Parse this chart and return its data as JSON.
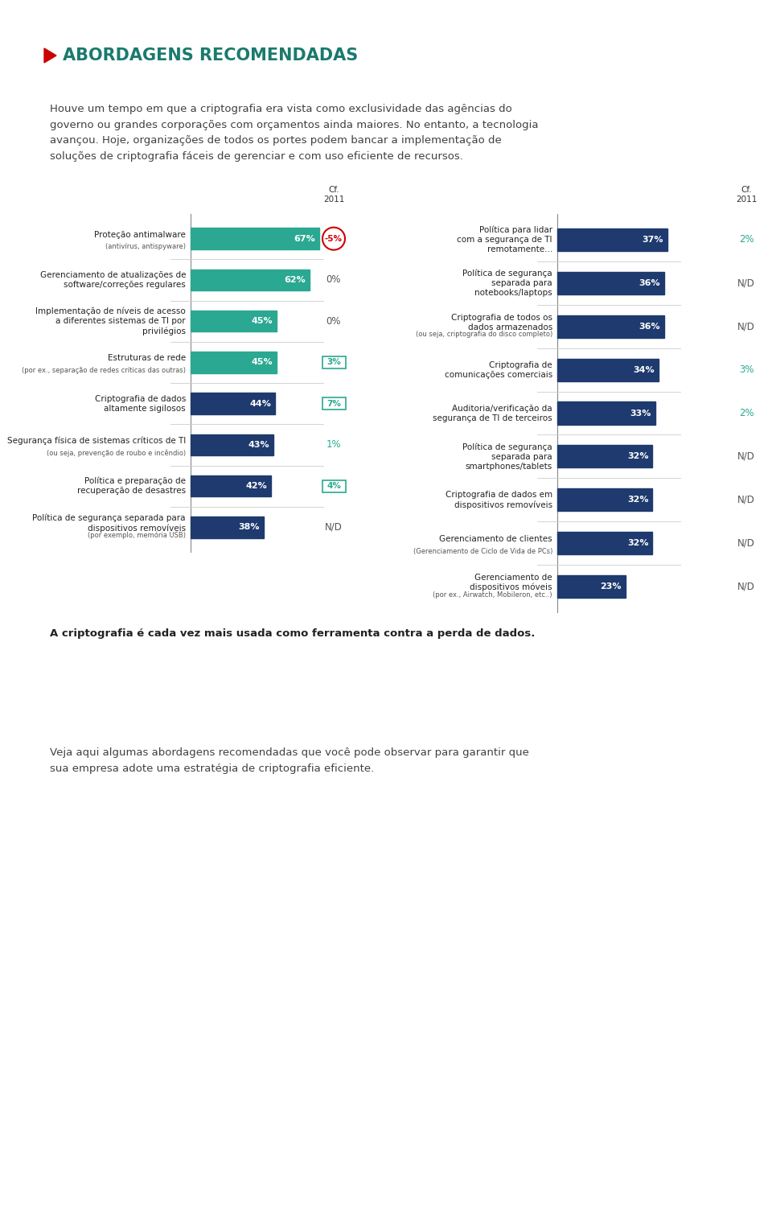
{
  "title": "ABORDAGENS RECOMENDADAS",
  "title_color": "#1a7a6e",
  "arrow_color": "#cc0000",
  "body_text": "Houve um tempo em que a criptografia era vista como exclusividade das agências do\ngoverno ou grandes corporações com orçamentos ainda maiores. No entanto, a tecnologia\navançou. Hoje, organizações de todos os portes podem bancar a implementação de\nsoluções de criptografia fáceis de gerenciar e com uso eficiente de recursos.",
  "footer_text": "A criptografia é cada vez mais usada como ferramenta contra a perda de dados.",
  "footer_text2": "Veja aqui algumas abordagens recomendadas que você pode observar para garantir que\nsua empresa adote uma estratégia de criptografia eficiente.",
  "left_bars": [
    {
      "label": "Proteção antimalware\n(antivírus, antispyware)",
      "value": 67,
      "color": "#2aa891",
      "cf2011": "-5%",
      "cf2011_color": "#cc0000",
      "cf2011_box": "circle"
    },
    {
      "label": "Gerenciamento de atualizações de\nsoftware/correções regulares",
      "value": 62,
      "color": "#2aa891",
      "cf2011": "0%",
      "cf2011_color": "#555555",
      "cf2011_box": "none"
    },
    {
      "label": "Implementação de níveis de acesso\na diferentes sistemas de TI por\nprivilégios",
      "value": 45,
      "color": "#2aa891",
      "cf2011": "0%",
      "cf2011_color": "#555555",
      "cf2011_box": "none"
    },
    {
      "label": "Estruturas de rede\n(por ex., separação de redes críticas das outras)",
      "value": 45,
      "color": "#2aa891",
      "cf2011": "3%",
      "cf2011_color": "#2aa891",
      "cf2011_box": "rect"
    },
    {
      "label": "Criptografia de dados\naltamente sigilosos",
      "value": 44,
      "color": "#1e3a6e",
      "cf2011": "7%",
      "cf2011_color": "#2aa891",
      "cf2011_box": "rect"
    },
    {
      "label": "Segurança física de sistemas críticos de TI\n(ou seja, prevenção de roubo e incêndio)",
      "value": 43,
      "color": "#1e3a6e",
      "cf2011": "1%",
      "cf2011_color": "#2aa891",
      "cf2011_box": "none"
    },
    {
      "label": "Política e preparação de\nrecuperação de desastres",
      "value": 42,
      "color": "#1e3a6e",
      "cf2011": "4%",
      "cf2011_color": "#2aa891",
      "cf2011_box": "rect"
    },
    {
      "label": "Política de segurança separada para\ndispositivos removíveis\n(por exemplo, memória USB)",
      "value": 38,
      "color": "#1e3a6e",
      "cf2011": "N/D",
      "cf2011_color": "#555555",
      "cf2011_box": "none"
    }
  ],
  "right_bars": [
    {
      "label": "Política para lidar\ncom a segurança de TI\nremotamente...",
      "value": 37,
      "color": "#1e3a6e",
      "cf2011": "2%",
      "cf2011_color": "#2aa891"
    },
    {
      "label": "Política de segurança\nseparada para\nnotebooks/laptops",
      "value": 36,
      "color": "#1e3a6e",
      "cf2011": "N/D",
      "cf2011_color": "#555555"
    },
    {
      "label": "Criptografia de todos os\ndados armazenados\n(ou seja, criptografia do disco completo)",
      "value": 36,
      "color": "#1e3a6e",
      "cf2011": "N/D",
      "cf2011_color": "#555555"
    },
    {
      "label": "Criptografia de\ncomunicações comerciais",
      "value": 34,
      "color": "#1e3a6e",
      "cf2011": "3%",
      "cf2011_color": "#2aa891"
    },
    {
      "label": "Auditoria/verificação da\nsegurança de TI de terceiros",
      "value": 33,
      "color": "#1e3a6e",
      "cf2011": "2%",
      "cf2011_color": "#2aa891"
    },
    {
      "label": "Política de segurança\nseparada para\nsmartphones/tablets",
      "value": 32,
      "color": "#1e3a6e",
      "cf2011": "N/D",
      "cf2011_color": "#555555"
    },
    {
      "label": "Criptografia de dados em\ndispositivos removíveis",
      "value": 32,
      "color": "#1e3a6e",
      "cf2011": "N/D",
      "cf2011_color": "#555555"
    },
    {
      "label": "Gerenciamento de clientes\n(Gerenciamento de Ciclo de Vida de PCs)",
      "value": 32,
      "color": "#1e3a6e",
      "cf2011": "N/D",
      "cf2011_color": "#555555"
    },
    {
      "label": "Gerenciamento de\ndispositivos móveis\n(por ex., Airwatch, Mobileron, etc..)",
      "value": 23,
      "color": "#1e3a6e",
      "cf2011": "N/D",
      "cf2011_color": "#555555"
    }
  ],
  "bg_color": "#ffffff",
  "text_color": "#333333",
  "cf_header": "Cf.\n2011"
}
